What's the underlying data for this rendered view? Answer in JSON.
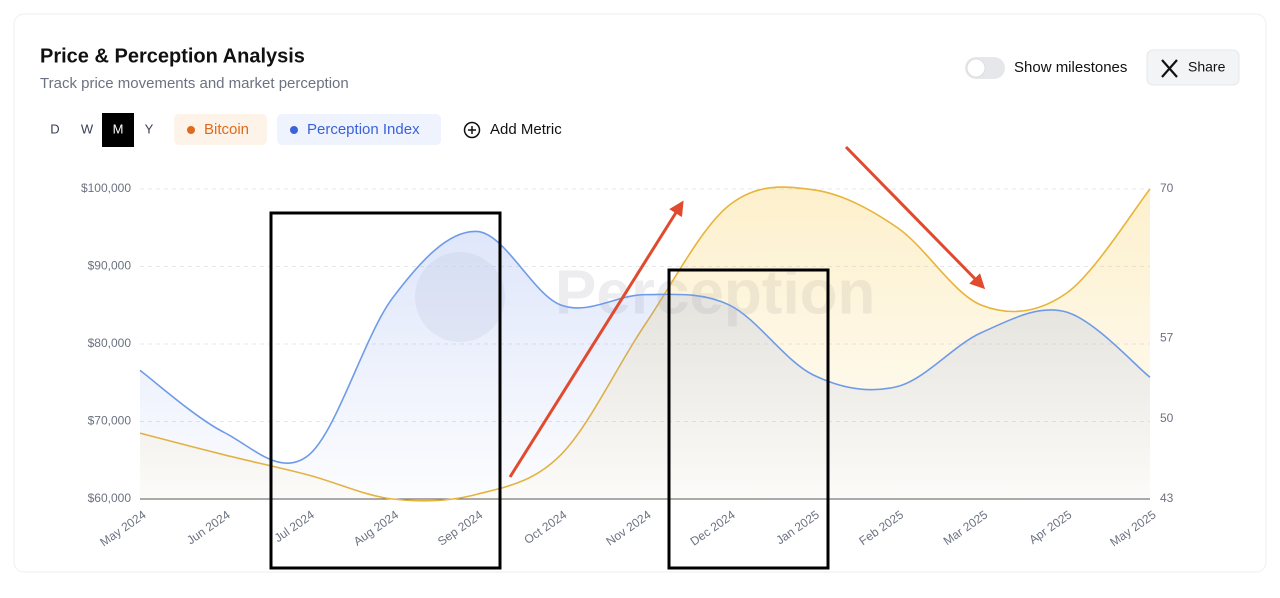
{
  "header": {
    "title": "Price & Perception Analysis",
    "subtitle": "Track price movements and market perception"
  },
  "controls": {
    "periods": [
      "D",
      "W",
      "M",
      "Y"
    ],
    "active_period": "M",
    "add_metric": "Add Metric",
    "milestones": "Show milestones",
    "share": "Share"
  },
  "chart_data": {
    "type": "line",
    "watermark": "Perception",
    "categories": [
      "May 2024",
      "Jun 2024",
      "Jul 2024",
      "Aug 2024",
      "Sep 2024",
      "Oct 2024",
      "Nov 2024",
      "Dec 2024",
      "Jan 2025",
      "Feb 2025",
      "Mar 2025",
      "Apr 2025",
      "May 2025"
    ],
    "series": [
      {
        "name": "Bitcoin",
        "color": "#e8b43a",
        "legend_color": "#dd6b20",
        "axis": "y",
        "values": [
          68500,
          65700,
          63100,
          60000,
          60600,
          65700,
          82500,
          97900,
          99900,
          95000,
          85000,
          86500,
          100000
        ]
      },
      {
        "name": "Perception Index",
        "color": "#6e9be8",
        "legend_color": "#3b63d9",
        "axis": "y2",
        "values": [
          54.2,
          48.8,
          46.8,
          60.5,
          66.3,
          59.9,
          60.8,
          59.9,
          53.8,
          52.8,
          57.5,
          59.3,
          53.6
        ]
      }
    ],
    "ylim": [
      60000,
      100000
    ],
    "yticks": [
      {
        "value": 60000,
        "label": "$60,000"
      },
      {
        "value": 70000,
        "label": "$70,000"
      },
      {
        "value": 80000,
        "label": "$80,000"
      },
      {
        "value": 90000,
        "label": "$90,000"
      },
      {
        "value": 100000,
        "label": "$100,000"
      }
    ],
    "y2lim": [
      43,
      70
    ],
    "y2ticks": [
      43,
      50,
      57,
      70
    ],
    "grid": true
  }
}
